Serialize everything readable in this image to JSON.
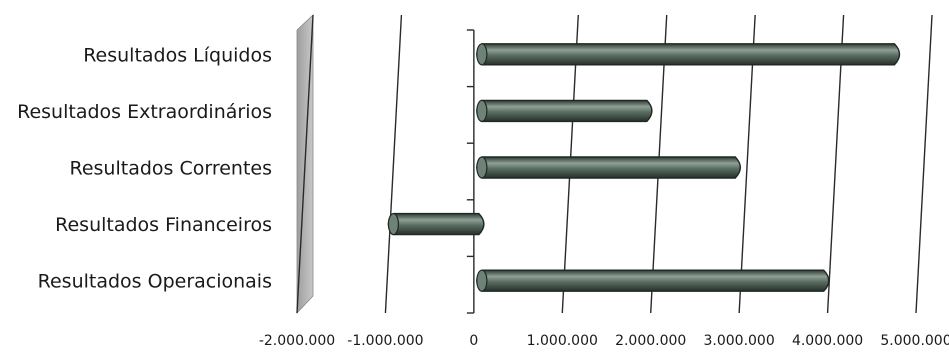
{
  "chart_data": {
    "type": "bar",
    "orientation": "horizontal",
    "style": "3d-cylinder",
    "categories": [
      "Resultados Líquidos",
      "Resultados Extraordinários",
      "Resultados Correntes",
      "Resultados Financeiros",
      "Resultados Operacionais"
    ],
    "values": [
      4700000,
      1900000,
      2900000,
      -1000000,
      3900000
    ],
    "xlim": [
      -2000000,
      5000000
    ],
    "xticks": [
      -2000000,
      -1000000,
      0,
      1000000,
      2000000,
      3000000,
      4000000,
      5000000
    ],
    "xtick_labels": [
      "-2.000.000",
      "-1.000.000",
      "0",
      "1.000.000",
      "2.000.000",
      "3.000.000",
      "4.000.000",
      "5.000.000"
    ],
    "title": "",
    "xlabel": "",
    "ylabel": "",
    "grid": true,
    "legend": "none",
    "colors": {
      "bar": "#5b6e63",
      "bar_highlight": "#9aa89f",
      "bar_shadow": "#2e3a33",
      "back_wall": "#bdbdbd",
      "grid": "#2a2a2a"
    }
  }
}
